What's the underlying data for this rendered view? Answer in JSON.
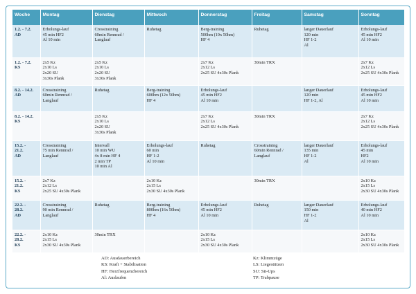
{
  "headers": [
    "Woche",
    "Montag",
    "Dienstag",
    "Mittwoch",
    "Donnerstag",
    "Freitag",
    "Samstag",
    "Sonntag"
  ],
  "rows": [
    {
      "week": [
        "1.2. - 7.2.",
        "AD"
      ],
      "cells": [
        [
          "Erholungs-lauf",
          "45 min HF2",
          "Al 10 min"
        ],
        [
          "Crosstraining",
          "60min Rennrad /",
          "Langlauf"
        ],
        [
          "Ruhetag"
        ],
        [
          "Berg-training",
          "500hm (10x 50hm)",
          "HF 4"
        ],
        [
          "Ruhetag"
        ],
        [
          "langer Dauerlauf",
          "120 min",
          "HF 1-2",
          "Al"
        ],
        [
          "Erholungs-lauf",
          "45 min HF2",
          "Al 10 min"
        ]
      ]
    },
    {
      "week": [
        "1.2. - 7.2.",
        "KS"
      ],
      "cells": [
        [
          "2x5 Kz",
          "2x10 Ls",
          "2x20 SU",
          "3x30s Plank"
        ],
        [
          "2x5 Kz",
          "2x10 Ls",
          "2x20 SU",
          "3x30s Plank"
        ],
        [],
        [
          "2x7 Kz",
          "2x12 Ls",
          "2x25 SU 4x30s Plank"
        ],
        [
          "30min TRX"
        ],
        [],
        [
          "2x7 Kz",
          "2x12 Ls",
          "2x25 SU 4x30s Plank"
        ]
      ]
    },
    {
      "week": [
        "8.2. - 14.2.",
        "AD"
      ],
      "cells": [
        [
          "Crosstraining",
          "60min Rennrad /",
          "Langlauf"
        ],
        [
          "Ruhetag"
        ],
        [
          "Berg-training",
          "600hm (12x 50hm)",
          "HF 4"
        ],
        [
          "Erholungs-lauf",
          "45 min HF2",
          "Al 10 min"
        ],
        [],
        [
          "langer Dauerlauf",
          "120 min",
          "HF 1-2, Al"
        ],
        [
          "Erholungs-lauf",
          "45 min HF2",
          "Al 10 min"
        ]
      ]
    },
    {
      "week": [
        "8.2. - 14.2.",
        "KS"
      ],
      "cells": [
        [],
        [
          "2x5 Kz",
          "2x10 Ls",
          "2x20 SU",
          "3x30s Plank"
        ],
        [],
        [
          "2x7 Kz",
          "2x12 Ls",
          "2x25 SU 4x30s Plank"
        ],
        [
          "30min TRX"
        ],
        [],
        [
          "2x7 Kz",
          "2x12 Ls",
          "2x25 SU 4x30s Plank"
        ]
      ]
    },
    {
      "week": [
        "15.2. -",
        "21.2.",
        "AD"
      ],
      "cells": [
        [
          "Crosstraining",
          "75 min Rennrad /",
          "Langlauf"
        ],
        [
          "Intervall",
          "10 min WU",
          "4x 8 min HF 4",
          "2 min TP",
          "10 min Al"
        ],
        [
          "Erholungs-lauf",
          "60 min",
          "HF 1-2",
          "Al 10 min"
        ],
        [
          "Ruhetag"
        ],
        [
          "Crosstraining",
          "60min Rennrad /",
          "Langlauf"
        ],
        [
          "langer Dauerlauf",
          "135 min",
          "HF 1-2",
          "Al"
        ],
        [
          "Erholungs-lauf",
          "45 min",
          "HF2",
          "Al 10 min"
        ]
      ]
    },
    {
      "week": [
        "15.2. -",
        "21.2.",
        "KS"
      ],
      "cells": [
        [
          "2x7 Kz",
          "2x12 Ls",
          "2x25 SU 4x30s Plank"
        ],
        [],
        [
          "2x10 Kz",
          "2x15 Ls",
          "2x30 SU 4x30s Plank"
        ],
        [],
        [
          "30min TRX"
        ],
        [],
        [
          "2x10 Kz",
          "2x15 Ls",
          "2x30 SU 4x30s Plank"
        ]
      ]
    },
    {
      "week": [
        "22.2. -",
        "28.2.",
        "AD"
      ],
      "cells": [
        [
          "Crosstraining",
          "90 min Rennrad /",
          "Langlauf"
        ],
        [
          "Ruhetag"
        ],
        [
          "Berg-training",
          "800hm (16x 50hm)",
          "HF 4"
        ],
        [
          "Erholungs-lauf",
          "45 min HF2",
          "Al 10 min"
        ],
        [
          "Ruhetag"
        ],
        [
          "langer Dauerlauf",
          "150 min",
          "HF 1-2",
          "Al"
        ],
        [
          "Erholungs-lauf",
          "40 min HF2",
          "Al 10 min"
        ]
      ]
    },
    {
      "week": [
        "22.2. -",
        "28.2.",
        "KS"
      ],
      "cells": [
        [
          "2x10 Kz",
          "2x15 Ls",
          "2x30 SU 4x30s Plank"
        ],
        [
          "30min TRX"
        ],
        [],
        [
          "2x10 Kz",
          "2x15 Ls",
          "2x30 SU 4x30s Plank"
        ],
        [],
        [],
        [
          "2x10 Kz",
          "2x15 Ls",
          "2x30 SU 4x30s Plank"
        ]
      ]
    }
  ],
  "legend_left": [
    "AD: Ausdauerbereich",
    "KS: Kraft + Stabilisation",
    "HF: Herzfrequenzbereich",
    "Al: Auslaufen"
  ],
  "legend_right": [
    "Kz: Klimmzüge",
    "LS: Liegestützen",
    "SU: Sit-Ups",
    "TP: Trabpause"
  ]
}
